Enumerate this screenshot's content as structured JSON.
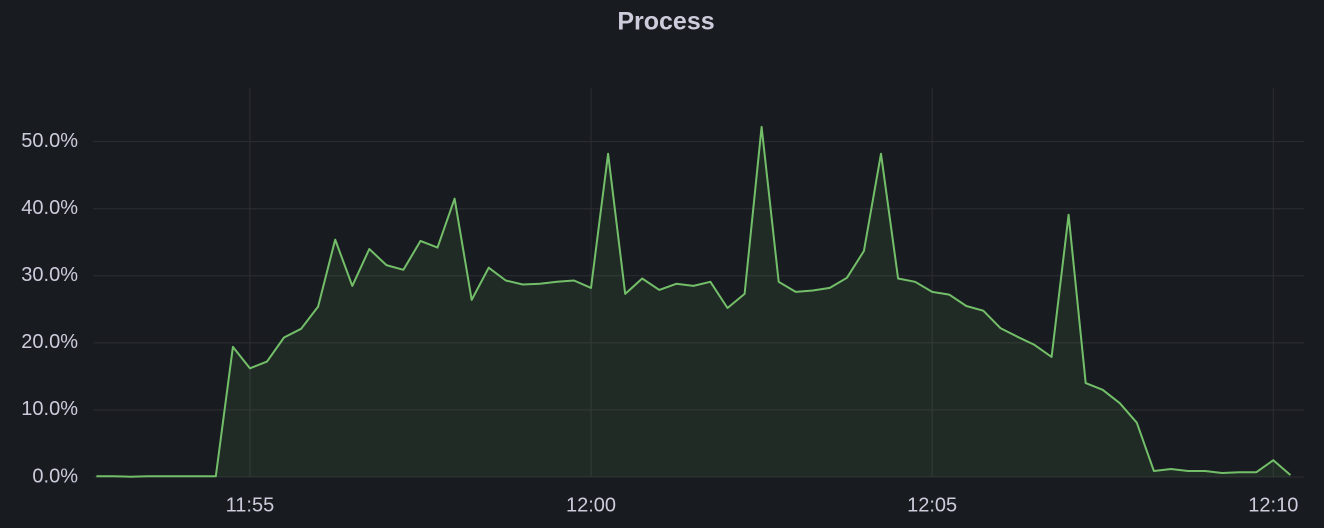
{
  "chart_data": {
    "type": "line",
    "title": "Process",
    "area": true,
    "color": "#73bf69",
    "grid": true,
    "x": [
      712.75,
      713,
      713.25,
      713.5,
      713.75,
      714,
      714.25,
      714.5,
      714.75,
      715,
      715.25,
      715.5,
      715.75,
      716,
      716.25,
      716.5,
      716.75,
      717,
      717.25,
      717.5,
      717.75,
      718,
      718.25,
      718.5,
      718.75,
      719,
      719.25,
      719.5,
      719.75,
      720,
      720.25,
      720.5,
      720.75,
      721,
      721.25,
      721.5,
      721.75,
      722,
      722.25,
      722.5,
      722.75,
      723,
      723.25,
      723.5,
      723.75,
      724,
      724.25,
      724.5,
      724.75,
      725,
      725.25,
      725.5,
      725.75,
      726,
      726.25,
      726.5,
      726.75,
      727,
      727.25,
      727.5,
      727.75,
      728,
      728.25,
      728.5,
      728.75,
      729,
      729.25,
      729.5,
      729.75,
      730,
      730.25
    ],
    "values": [
      0.1,
      0.1,
      0.05,
      0.1,
      0.1,
      0.1,
      0.1,
      0.1,
      19.4,
      16.2,
      17.2,
      20.8,
      22.1,
      25.4,
      35.4,
      28.5,
      34.0,
      31.6,
      30.9,
      35.2,
      34.2,
      41.5,
      26.4,
      31.2,
      29.3,
      28.7,
      28.8,
      29.1,
      29.3,
      28.2,
      48.2,
      27.3,
      29.6,
      27.9,
      28.8,
      28.5,
      29.1,
      25.2,
      27.3,
      52.2,
      29.1,
      27.6,
      27.8,
      28.2,
      29.7,
      33.7,
      48.2,
      29.6,
      29.1,
      27.6,
      27.2,
      25.5,
      24.8,
      22.2,
      20.9,
      19.7,
      17.9,
      39.1,
      14.0,
      13.0,
      11.0,
      8.1,
      0.9,
      1.2,
      0.9,
      0.9,
      0.6,
      0.7,
      0.7,
      2.5,
      0.3
    ],
    "xlim": [
      712.7,
      730.45
    ],
    "xticks": [
      {
        "value": 715,
        "label": "11:55"
      },
      {
        "value": 720,
        "label": "12:00"
      },
      {
        "value": 725,
        "label": "12:05"
      },
      {
        "value": 730,
        "label": "12:10"
      }
    ],
    "ylim": [
      0,
      58
    ],
    "yticks": [
      {
        "value": 0,
        "label": "0.0%"
      },
      {
        "value": 10,
        "label": "10.0%"
      },
      {
        "value": 20,
        "label": "20.0%"
      },
      {
        "value": 30,
        "label": "30.0%"
      },
      {
        "value": 40,
        "label": "40.0%"
      },
      {
        "value": 50,
        "label": "50.0%"
      }
    ]
  }
}
